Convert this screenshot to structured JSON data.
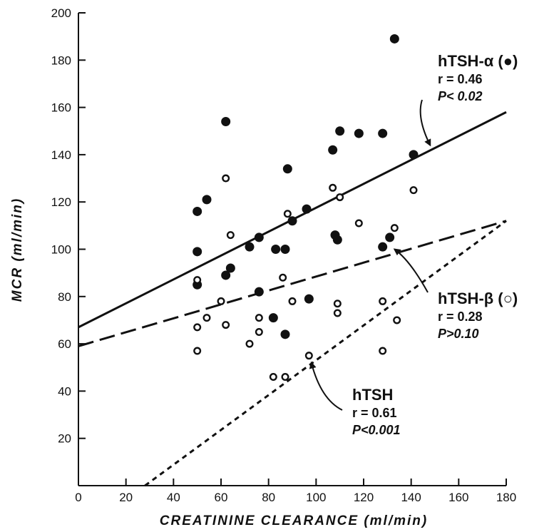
{
  "chart_data": {
    "type": "scatter",
    "title": "",
    "xlabel": "CREATININE CLEARANCE (ml/min)",
    "ylabel": "MCR (ml/min)",
    "xlim": [
      0,
      180
    ],
    "ylim": [
      0,
      200
    ],
    "x_ticks": [
      0,
      20,
      40,
      60,
      80,
      100,
      120,
      140,
      160,
      180
    ],
    "y_ticks": [
      20,
      40,
      60,
      80,
      100,
      120,
      140,
      160,
      180,
      200
    ],
    "grid": false,
    "series": [
      {
        "marker": "filled-circle",
        "points": [
          [
            50,
            116
          ],
          [
            50,
            99
          ],
          [
            50,
            85
          ],
          [
            54,
            121
          ],
          [
            62,
            154
          ],
          [
            62,
            89
          ],
          [
            64,
            92
          ],
          [
            72,
            101
          ],
          [
            76,
            105
          ],
          [
            76,
            82
          ],
          [
            82,
            71
          ],
          [
            83,
            100
          ],
          [
            87,
            100
          ],
          [
            87,
            64
          ],
          [
            88,
            134
          ],
          [
            90,
            112
          ],
          [
            96,
            117
          ],
          [
            97,
            79
          ],
          [
            107,
            142
          ],
          [
            108,
            106
          ],
          [
            109,
            104
          ],
          [
            110,
            150
          ],
          [
            118,
            149
          ],
          [
            128,
            149
          ],
          [
            128,
            101
          ],
          [
            131,
            105
          ],
          [
            133,
            189
          ],
          [
            141,
            140
          ]
        ]
      },
      {
        "marker": "open-circle",
        "points": [
          [
            50,
            87
          ],
          [
            50,
            67
          ],
          [
            50,
            57
          ],
          [
            54,
            71
          ],
          [
            60,
            78
          ],
          [
            62,
            130
          ],
          [
            62,
            68
          ],
          [
            64,
            106
          ],
          [
            72,
            60
          ],
          [
            76,
            71
          ],
          [
            76,
            65
          ],
          [
            82,
            46
          ],
          [
            86,
            88
          ],
          [
            87,
            46
          ],
          [
            88,
            115
          ],
          [
            90,
            78
          ],
          [
            97,
            55
          ],
          [
            107,
            126
          ],
          [
            109,
            77
          ],
          [
            109,
            73
          ],
          [
            110,
            122
          ],
          [
            118,
            111
          ],
          [
            128,
            78
          ],
          [
            128,
            57
          ],
          [
            133,
            109
          ],
          [
            134,
            70
          ],
          [
            141,
            125
          ]
        ]
      }
    ],
    "regression_lines": [
      {
        "style": "solid",
        "points": [
          [
            0,
            67
          ],
          [
            180,
            158
          ]
        ]
      },
      {
        "style": "long-dash",
        "points": [
          [
            0,
            59
          ],
          [
            180,
            112
          ]
        ]
      },
      {
        "style": "short-dash",
        "points": [
          [
            28,
            0
          ],
          [
            180,
            112
          ]
        ]
      }
    ],
    "annotations": [
      {
        "name": "hTSH-α (●)",
        "r": "r = 0.46",
        "p": "P< 0.02",
        "arrow_to": [
          148,
          144
        ]
      },
      {
        "name": "hTSH-β (○)",
        "r": "r = 0.28",
        "p": "P>0.10",
        "arrow_to": [
          133,
          100
        ]
      },
      {
        "name": "hTSH",
        "r": "r = 0.61",
        "p": "P<0.001",
        "arrow_to": [
          98,
          52
        ]
      }
    ]
  }
}
